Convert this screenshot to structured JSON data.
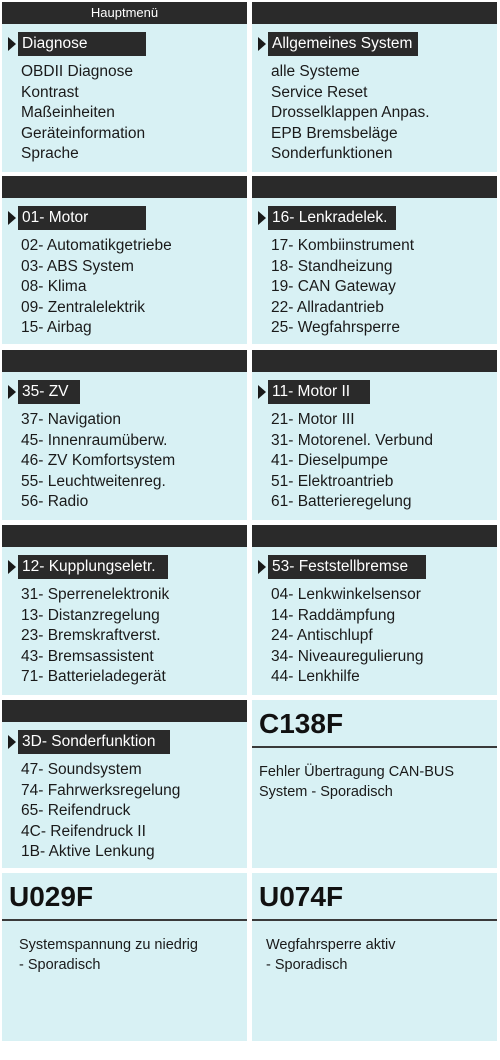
{
  "panels": [
    {
      "header": "Hauptmenü",
      "selected": "Diagnose",
      "items": [
        "OBDII Diagnose",
        "Kontrast",
        "Maßeinheiten",
        "Geräteinformation",
        "Sprache"
      ]
    },
    {
      "header": "",
      "selected": "Allgemeines System",
      "items": [
        "alle Systeme",
        "Service Reset",
        "Drosselklappen Anpas.",
        "EPB Bremsbeläge",
        "Sonderfunktionen"
      ]
    },
    {
      "header": "",
      "selected": "01- Motor",
      "items": [
        "02- Automatikgetriebe",
        "03- ABS System",
        "08- Klima",
        "09- Zentralelektrik",
        "15- Airbag"
      ]
    },
    {
      "header": "",
      "selected": "16- Lenkradelek.",
      "items": [
        "17- Kombiinstrument",
        "18- Standheizung",
        "19- CAN Gateway",
        "22- Allradantrieb",
        "25- Wegfahrsperre"
      ]
    },
    {
      "header": "",
      "selected": "35- ZV",
      "items": [
        "37- Navigation",
        "45- Innenraumüberw.",
        "46- ZV Komfortsystem",
        "55- Leuchtweitenreg.",
        "56- Radio"
      ]
    },
    {
      "header": "",
      "selected": "11- Motor II",
      "items": [
        "21- Motor III",
        "31- Motorenel. Verbund",
        "41- Dieselpumpe",
        "51- Elektroantrieb",
        "61- Batterieregelung"
      ]
    },
    {
      "header": "",
      "selected": "12- Kupplungseletr.",
      "items": [
        "31- Sperrenelektronik",
        "13- Distanzregelung",
        "23- Bremskraftverst.",
        "43- Bremsassistent",
        "71- Batterieladegerät"
      ]
    },
    {
      "header": "",
      "selected": "53- Feststellbremse",
      "items": [
        "04- Lenkwinkelsensor",
        "14- Raddämpfung",
        "24- Antischlupf",
        "34- Niveauregulierung",
        "44- Lenkhilfe"
      ]
    },
    {
      "header": "",
      "selected": "3D- Sonderfunktion",
      "items": [
        "47- Soundsystem",
        "74- Fahrwerksregelung",
        "65- Reifendruck",
        "4C- Reifendruck II",
        "1B- Aktive Lenkung"
      ]
    }
  ],
  "codes": [
    {
      "code": "C138F",
      "desc_line1": "Fehler Übertragung CAN-BUS",
      "desc_line2": "System - Sporadisch"
    },
    {
      "code": "U029F",
      "desc_line1": "Systemspannung zu niedrig",
      "desc_line2": "- Sporadisch"
    },
    {
      "code": "U074F",
      "desc_line1": "Wegfahrsperre aktiv",
      "desc_line2": "- Sporadisch"
    }
  ]
}
